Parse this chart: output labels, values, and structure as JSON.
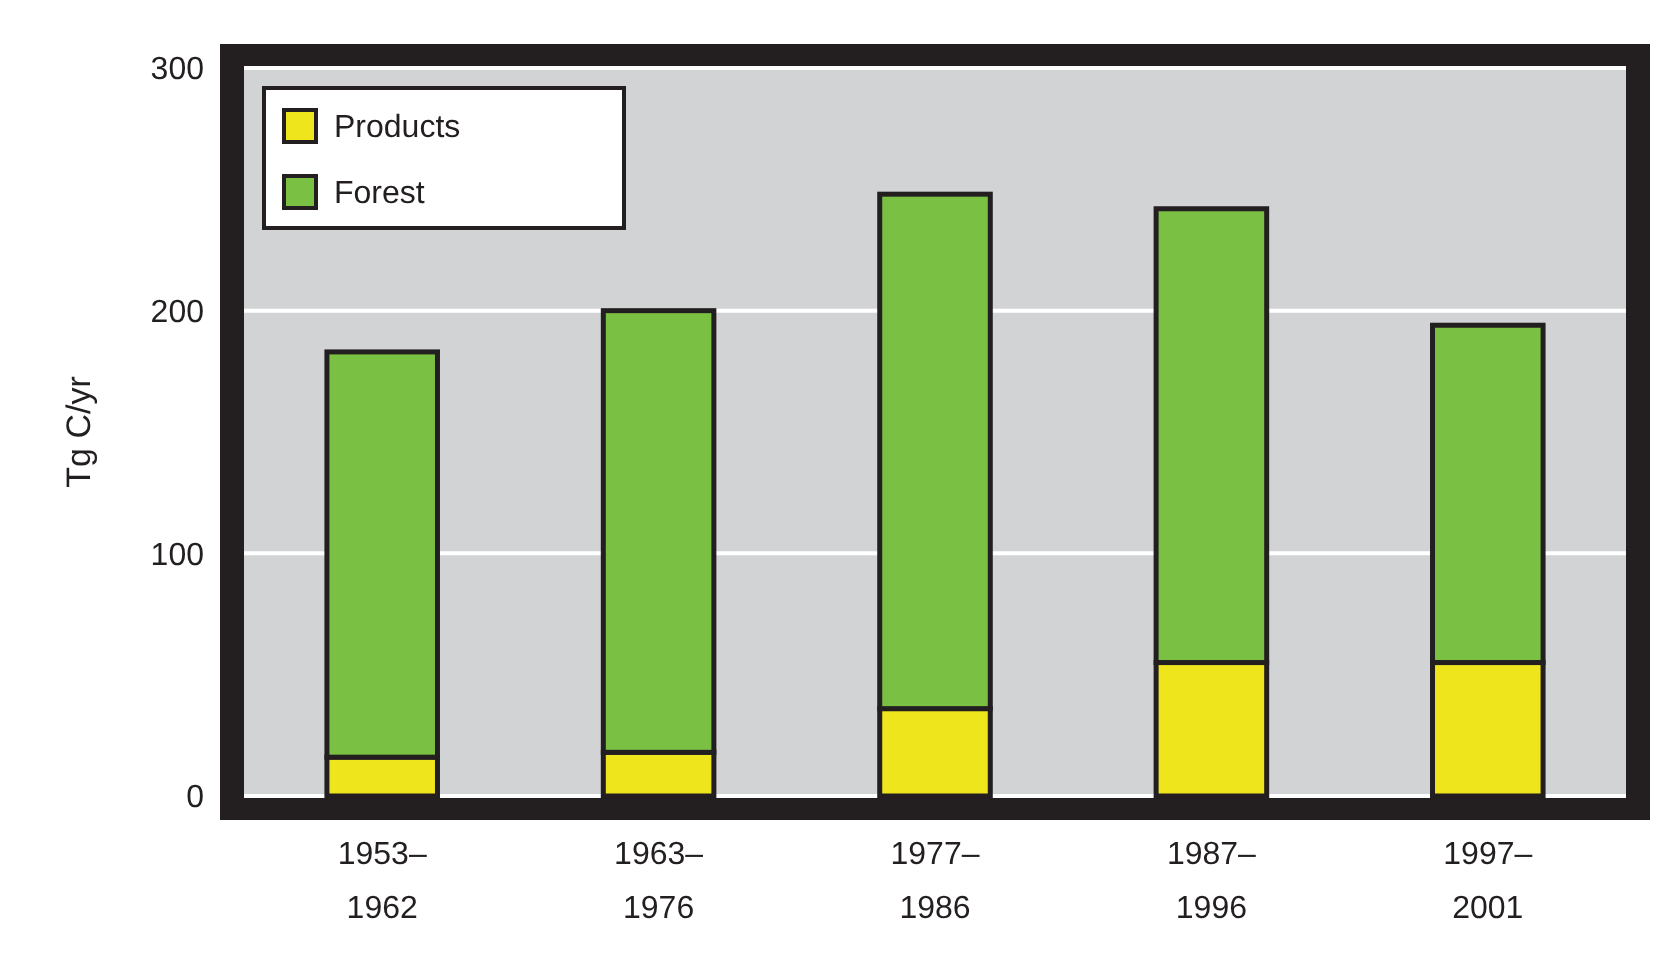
{
  "chart_data": {
    "type": "bar",
    "stacked": true,
    "ylabel": "Tg C/yr",
    "categories": [
      "1953–\n1962",
      "1963–\n1976",
      "1977–\n1986",
      "1987–\n1996",
      "1997–\n2001"
    ],
    "series": [
      {
        "name": "Products",
        "color": "#eee51c",
        "values": [
          16,
          18,
          36,
          55,
          55
        ]
      },
      {
        "name": "Forest",
        "color": "#7ac143",
        "values": [
          167,
          182,
          212,
          187,
          139
        ]
      }
    ],
    "ylim": [
      0,
      300
    ],
    "yticks": [
      0,
      100,
      200,
      300
    ],
    "grid": "y",
    "legend": "top left"
  }
}
